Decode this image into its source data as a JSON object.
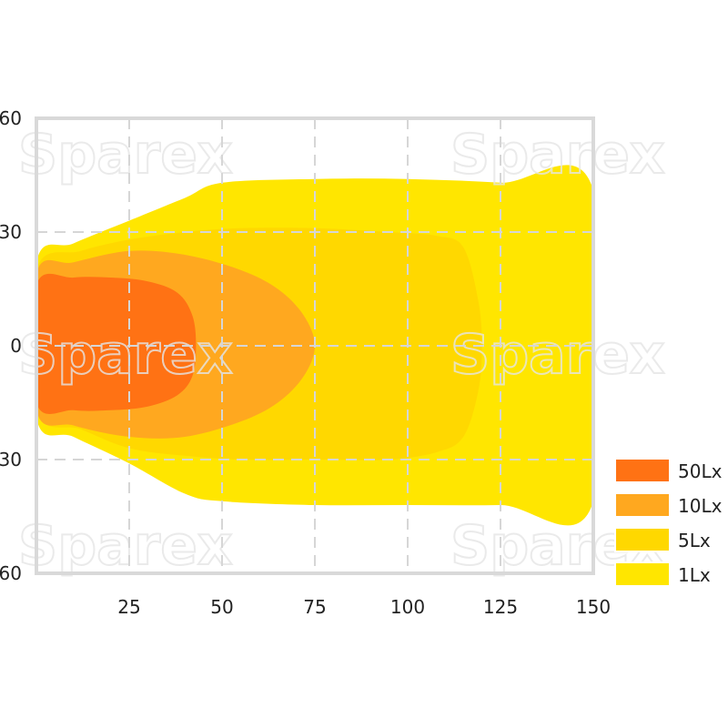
{
  "chart_data": {
    "type": "area",
    "title": "",
    "xlabel": "",
    "ylabel": "",
    "x_ticks": [
      "25",
      "50",
      "75",
      "100",
      "125",
      "150"
    ],
    "y_ticks": [
      "60",
      "30",
      "0",
      "30",
      "60"
    ],
    "xlim": [
      0,
      150
    ],
    "ylim": [
      -60,
      60
    ],
    "grid": true,
    "legend_position": "bottom-right",
    "watermark": "Sparex",
    "series": [
      {
        "name": "1Lx",
        "color": "#ffe600",
        "outline": [
          [
            0,
            22
          ],
          [
            10,
            27
          ],
          [
            25,
            33
          ],
          [
            40,
            39
          ],
          [
            50,
            43
          ],
          [
            75,
            44
          ],
          [
            100,
            44
          ],
          [
            125,
            43
          ],
          [
            150,
            41
          ],
          [
            150,
            -41
          ],
          [
            125,
            -42
          ],
          [
            100,
            -42
          ],
          [
            75,
            -42
          ],
          [
            50,
            -41
          ],
          [
            40,
            -39
          ],
          [
            25,
            -31
          ],
          [
            10,
            -24
          ],
          [
            0,
            -19
          ]
        ]
      },
      {
        "name": "5Lx",
        "color": "#ffd800",
        "outline": [
          [
            0,
            20
          ],
          [
            12,
            25
          ],
          [
            25,
            28
          ],
          [
            40,
            30
          ],
          [
            55,
            31
          ],
          [
            75,
            31
          ],
          [
            95,
            30
          ],
          [
            108,
            29
          ],
          [
            115,
            26
          ],
          [
            119,
            12
          ],
          [
            120,
            0
          ],
          [
            119,
            -12
          ],
          [
            115,
            -24
          ],
          [
            108,
            -28
          ],
          [
            95,
            -30
          ],
          [
            75,
            -30
          ],
          [
            55,
            -30
          ],
          [
            40,
            -29
          ],
          [
            25,
            -27
          ],
          [
            12,
            -22
          ],
          [
            0,
            -17
          ]
        ]
      },
      {
        "name": "10Lx",
        "color": "#ffa81f",
        "outline": [
          [
            0,
            19
          ],
          [
            10,
            22
          ],
          [
            25,
            25
          ],
          [
            40,
            24
          ],
          [
            55,
            20
          ],
          [
            65,
            15
          ],
          [
            72,
            8
          ],
          [
            75,
            0
          ],
          [
            72,
            -8
          ],
          [
            65,
            -15
          ],
          [
            55,
            -20
          ],
          [
            40,
            -24
          ],
          [
            25,
            -24
          ],
          [
            10,
            -21
          ],
          [
            0,
            -17
          ]
        ]
      },
      {
        "name": "50Lx",
        "color": "#ff7214",
        "outline": [
          [
            0,
            16
          ],
          [
            10,
            18
          ],
          [
            20,
            18
          ],
          [
            30,
            17
          ],
          [
            38,
            14
          ],
          [
            42,
            8
          ],
          [
            43,
            0
          ],
          [
            42,
            -8
          ],
          [
            38,
            -13
          ],
          [
            30,
            -16
          ],
          [
            20,
            -17
          ],
          [
            10,
            -17
          ],
          [
            0,
            -15
          ]
        ]
      }
    ],
    "legend": [
      {
        "label": "50Lx",
        "color": "#ff7214"
      },
      {
        "label": "10Lx",
        "color": "#ffa81f"
      },
      {
        "label": "5Lx",
        "color": "#ffd800"
      },
      {
        "label": "1Lx",
        "color": "#ffe600"
      }
    ]
  }
}
